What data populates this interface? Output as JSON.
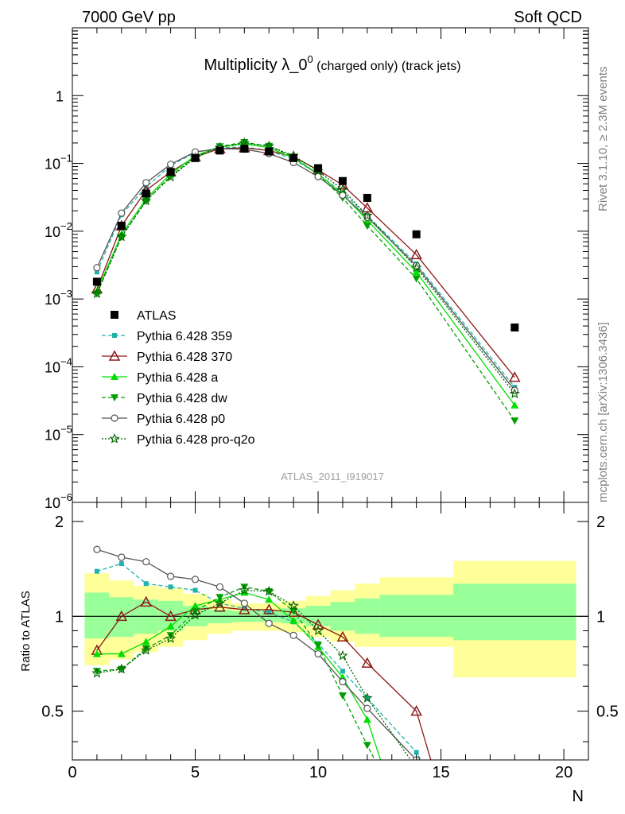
{
  "header": {
    "left": "7000 GeV pp",
    "right": "Soft QCD"
  },
  "side_text": {
    "rivet": "Rivet 3.1.10, ≥ 2.3M events",
    "mcplots": "mcplots.cern.ch [arXiv:1306.3436]"
  },
  "watermark": "ATLAS_2011_I919017",
  "chart_data": [
    {
      "type": "line",
      "panel": "main",
      "title": "Multiplicity λ_0^0 (charged only) (track jets)",
      "title_main": "Multiplicity λ_0",
      "title_sup": "0",
      "title_small": "(charged only) (track jets)",
      "y_scale": "log",
      "ylim": [
        1e-06,
        10
      ],
      "xlim": [
        0,
        21
      ],
      "y_ticks": [
        {
          "value": 1,
          "label": "1"
        },
        {
          "value": 0.1,
          "base": "10",
          "exp": "−1"
        },
        {
          "value": 0.01,
          "base": "10",
          "exp": "−2"
        },
        {
          "value": 0.001,
          "base": "10",
          "exp": "−3"
        },
        {
          "value": 0.0001,
          "base": "10",
          "exp": "−4"
        },
        {
          "value": 1e-05,
          "base": "10",
          "exp": "−5"
        },
        {
          "value": 1e-06,
          "base": "10",
          "exp": "−6"
        }
      ],
      "x": [
        1,
        2,
        3,
        4,
        5,
        6,
        7,
        8,
        9,
        10,
        11,
        12,
        14,
        18
      ],
      "data": {
        "name": "ATLAS",
        "y": [
          0.0018,
          0.012,
          0.036,
          0.075,
          0.12,
          0.155,
          0.165,
          0.15,
          0.12,
          0.085,
          0.055,
          0.031,
          0.009,
          0.00038
        ],
        "color": "#000000"
      },
      "series": [
        {
          "name": "Pythia 6.428 359",
          "color": "#20b2aa",
          "dash": "5,3",
          "marker": "square",
          "y": [
            0.0025,
            0.0175,
            0.045,
            0.093,
            0.145,
            0.17,
            0.175,
            0.155,
            0.115,
            0.07,
            0.037,
            0.017,
            0.0033,
            5e-05
          ]
        },
        {
          "name": "Pythia 6.428 370",
          "color": "#8b1a1a",
          "dash": "",
          "marker": "triangle-open",
          "y": [
            0.0014,
            0.012,
            0.04,
            0.075,
            0.125,
            0.165,
            0.17,
            0.155,
            0.125,
            0.08,
            0.048,
            0.022,
            0.0045,
            7e-05
          ]
        },
        {
          "name": "Pythia 6.428 a",
          "color": "#00e000",
          "dash": "",
          "marker": "triangle",
          "y": [
            0.0013,
            0.009,
            0.03,
            0.07,
            0.13,
            0.175,
            0.195,
            0.17,
            0.12,
            0.07,
            0.035,
            0.0145,
            0.0025,
            2.7e-05
          ]
        },
        {
          "name": "Pythia 6.428 dw",
          "color": "#00a000",
          "dash": "5,3",
          "marker": "triangle-down",
          "y": [
            0.0012,
            0.0082,
            0.028,
            0.065,
            0.125,
            0.178,
            0.205,
            0.18,
            0.125,
            0.068,
            0.031,
            0.012,
            0.002,
            1.6e-05
          ]
        },
        {
          "name": "Pythia 6.428 p0",
          "color": "#555555",
          "dash": "",
          "marker": "circle-open",
          "y": [
            0.0029,
            0.0185,
            0.052,
            0.097,
            0.148,
            0.165,
            0.162,
            0.14,
            0.103,
            0.064,
            0.034,
            0.016,
            0.0031,
            4.5e-05
          ]
        },
        {
          "name": "Pythia 6.428 pro-q2o",
          "color": "#006400",
          "dash": "2,2",
          "marker": "star",
          "y": [
            0.0012,
            0.0083,
            0.028,
            0.063,
            0.121,
            0.172,
            0.2,
            0.18,
            0.13,
            0.077,
            0.041,
            0.017,
            0.0029,
            4e-05
          ]
        }
      ],
      "legend_position": "middle-left"
    },
    {
      "type": "line",
      "panel": "ratio",
      "ylabel": "Ratio to ATLAS",
      "xlabel": "N",
      "ylim": [
        0.35,
        2.3
      ],
      "xlim": [
        0,
        21
      ],
      "x_ticks": [
        0,
        5,
        10,
        15,
        20
      ],
      "y_ticks": [
        0.5,
        1,
        2
      ],
      "x": [
        1,
        2,
        3,
        4,
        5,
        6,
        7,
        8,
        9,
        10,
        11,
        12,
        14,
        18
      ],
      "bins": [
        [
          0.5,
          1.5
        ],
        [
          1.5,
          2.5
        ],
        [
          2.5,
          3.5
        ],
        [
          3.5,
          4.5
        ],
        [
          4.5,
          5.5
        ],
        [
          5.5,
          6.5
        ],
        [
          6.5,
          7.5
        ],
        [
          7.5,
          8.5
        ],
        [
          8.5,
          9.5
        ],
        [
          9.5,
          10.5
        ],
        [
          10.5,
          11.5
        ],
        [
          11.5,
          12.5
        ],
        [
          12.5,
          15.5
        ],
        [
          15.5,
          20.5
        ]
      ],
      "band_inner": [
        [
          0.85,
          1.19
        ],
        [
          0.86,
          1.15
        ],
        [
          0.88,
          1.13
        ],
        [
          0.9,
          1.12
        ],
        [
          0.93,
          1.08
        ],
        [
          0.95,
          1.05
        ],
        [
          0.96,
          1.04
        ],
        [
          0.96,
          1.04
        ],
        [
          0.95,
          1.06
        ],
        [
          0.93,
          1.08
        ],
        [
          0.9,
          1.11
        ],
        [
          0.88,
          1.14
        ],
        [
          0.86,
          1.17
        ],
        [
          0.84,
          1.27
        ]
      ],
      "band_outer": [
        [
          0.7,
          1.37
        ],
        [
          0.73,
          1.3
        ],
        [
          0.77,
          1.25
        ],
        [
          0.8,
          1.23
        ],
        [
          0.84,
          1.18
        ],
        [
          0.88,
          1.13
        ],
        [
          0.9,
          1.1
        ],
        [
          0.9,
          1.1
        ],
        [
          0.89,
          1.12
        ],
        [
          0.86,
          1.16
        ],
        [
          0.83,
          1.21
        ],
        [
          0.8,
          1.27
        ],
        [
          0.8,
          1.33
        ],
        [
          0.64,
          1.5
        ]
      ],
      "series": [
        {
          "name": "Pythia 6.428 359",
          "y": [
            1.39,
            1.47,
            1.27,
            1.24,
            1.21,
            1.1,
            1.06,
            1.03,
            0.96,
            0.82,
            0.67,
            0.55,
            0.37,
            null
          ]
        },
        {
          "name": "Pythia 6.428 370",
          "y": [
            0.78,
            1.0,
            1.11,
            1.0,
            1.05,
            1.07,
            1.05,
            1.05,
            1.03,
            0.94,
            0.86,
            0.71,
            0.5,
            null
          ]
        },
        {
          "name": "Pythia 6.428 a",
          "y": [
            0.76,
            0.76,
            0.83,
            0.93,
            1.08,
            1.13,
            1.19,
            1.13,
            0.97,
            0.8,
            0.64,
            0.47,
            null,
            null
          ]
        },
        {
          "name": "Pythia 6.428 dw",
          "y": [
            0.67,
            0.68,
            0.79,
            0.87,
            1.04,
            1.15,
            1.24,
            1.2,
            1.04,
            0.81,
            0.56,
            0.39,
            null,
            null
          ]
        },
        {
          "name": "Pythia 6.428 p0",
          "y": [
            1.63,
            1.54,
            1.49,
            1.34,
            1.31,
            1.24,
            1.1,
            0.95,
            0.87,
            0.76,
            0.62,
            0.51,
            0.35,
            null
          ]
        },
        {
          "name": "Pythia 6.428 pro-q2o",
          "y": [
            0.66,
            0.68,
            0.78,
            0.85,
            1.01,
            1.1,
            1.21,
            1.2,
            1.08,
            0.9,
            0.75,
            0.55,
            0.33,
            null
          ]
        }
      ]
    }
  ]
}
